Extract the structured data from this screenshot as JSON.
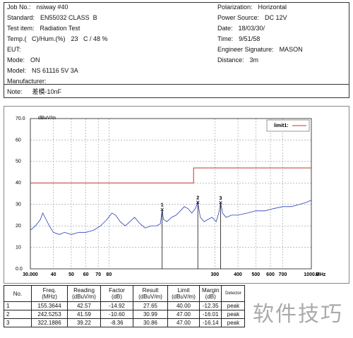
{
  "header": {
    "left": [
      {
        "label": "Job No.:",
        "value": "nsiway #40"
      },
      {
        "label": "Standard:",
        "value": "EN55032 CLASS  B"
      },
      {
        "label": "Test item:",
        "value": "Radiation Test"
      },
      {
        "label": "Temp.(   C)/Hum.(%)",
        "value": "23   C / 48 %"
      },
      {
        "label": "EUT:",
        "value": ""
      },
      {
        "label": "Mode:",
        "value": "ON"
      },
      {
        "label": "Model:",
        "value": "NS 61116 5V 3A"
      },
      {
        "label": "Manufacturer:",
        "value": ""
      }
    ],
    "right": [
      {
        "label": "Polarization:",
        "value": "Horizontal"
      },
      {
        "label": "Power Source:",
        "value": "DC 12V"
      },
      {
        "label": "Date:",
        "value": "18/03/30/"
      },
      {
        "label": "Time:",
        "value": "9/51/58"
      },
      {
        "label": "Engineer Signature:",
        "value": "MASON"
      },
      {
        "label": "Distance:",
        "value": "3m"
      }
    ]
  },
  "note": {
    "label": "Note:",
    "value": "差模-10nF"
  },
  "chart_data": {
    "type": "line",
    "y_label": "dBuV/m",
    "x_label": "MHz",
    "xscale": "log",
    "grid": true,
    "xlim": [
      30,
      1000
    ],
    "ylim": [
      0,
      70
    ],
    "xticks": [
      {
        "value": 30,
        "label": "30.000"
      },
      40,
      50,
      60,
      70,
      80,
      300,
      400,
      500,
      600,
      700,
      {
        "value": 1000,
        "label": "1000.0"
      }
    ],
    "yticks": [
      {
        "value": 0,
        "label": "0.0"
      },
      10,
      20,
      30,
      40,
      50,
      60,
      {
        "value": 70,
        "label": "70.0"
      }
    ],
    "series": [
      {
        "name": "limit1:",
        "color": "#c0392b",
        "x": [
          30,
          230,
          230,
          1000
        ],
        "values": [
          40,
          40,
          47,
          47
        ]
      },
      {
        "color": "#2a3fb8",
        "x": [
          30,
          32,
          34,
          35,
          36,
          38,
          40,
          43,
          46,
          50,
          55,
          60,
          66,
          72,
          78,
          83,
          87,
          92,
          98,
          104,
          110,
          118,
          126,
          135,
          145,
          152,
          155.4,
          158,
          165,
          175,
          185,
          195,
          205,
          215,
          225,
          235,
          242.5,
          250,
          262,
          275,
          290,
          305,
          315,
          322.2,
          330,
          345,
          370,
          400,
          450,
          500,
          560,
          620,
          700,
          780,
          860,
          940,
          1000
        ],
        "values": [
          18,
          20,
          23,
          26,
          24,
          20,
          17,
          16,
          17,
          16,
          17,
          17,
          18,
          20,
          23,
          26,
          25,
          22,
          20,
          22,
          24,
          21,
          19,
          20,
          20,
          21,
          27.6,
          23,
          22,
          24,
          25,
          27,
          29,
          28,
          26,
          28,
          31,
          24,
          22,
          23,
          24,
          22,
          26,
          30.9,
          26,
          24,
          25,
          25,
          26,
          27,
          27,
          28,
          29,
          29,
          30,
          31,
          32
        ]
      }
    ],
    "markers": {
      "labels": [
        "1",
        "2",
        "3"
      ],
      "x": [
        155.3644,
        242.5253,
        322.1886
      ],
      "values": [
        27.65,
        30.99,
        30.86
      ]
    }
  },
  "table": {
    "header": [
      "No.",
      "Freq.\n(MHz)",
      "Reading\n(dBuV/m)",
      "Factor\n(dB)",
      "Result\n(dBuV/m)",
      "Limit\n(dBuV/m)",
      "Margin\n(dB)",
      "Detector"
    ],
    "rows": [
      [
        "1",
        "155.3644",
        "42.57",
        "-14.92",
        "27.65",
        "40.00",
        "-12.35",
        "peak"
      ],
      [
        "2",
        "242.5253",
        "41.59",
        "-10.60",
        "30.99",
        "47.00",
        "-16.01",
        "peak"
      ],
      [
        "3",
        "322.1886",
        "39.22",
        "-8.36",
        "30.86",
        "47.00",
        "-16.14",
        "peak"
      ]
    ]
  },
  "watermark": "软件技巧"
}
